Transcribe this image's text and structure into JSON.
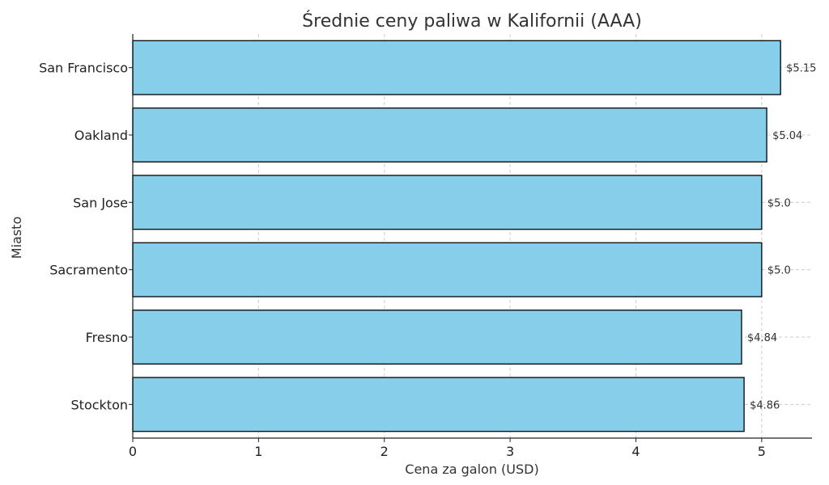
{
  "chart_data": {
    "type": "bar",
    "orientation": "horizontal",
    "title": "Średnie ceny paliwa w Kalifornii (AAA)",
    "xlabel": "Cena za galon (USD)",
    "ylabel": "Miasto",
    "categories": [
      "San Francisco",
      "Oakland",
      "San Jose",
      "Sacramento",
      "Fresno",
      "Stockton"
    ],
    "values": [
      5.15,
      5.04,
      5.0,
      5.0,
      4.84,
      4.86
    ],
    "data_labels": [
      "$5.15",
      "$5.04",
      "$5.0",
      "$5.0",
      "$4.84",
      "$4.86"
    ],
    "xlim": [
      0,
      5.4
    ],
    "xticks": [
      0,
      1,
      2,
      3,
      4,
      5
    ],
    "grid": true,
    "bar_color": "#87ceeb",
    "bar_edge_color": "#111111"
  }
}
